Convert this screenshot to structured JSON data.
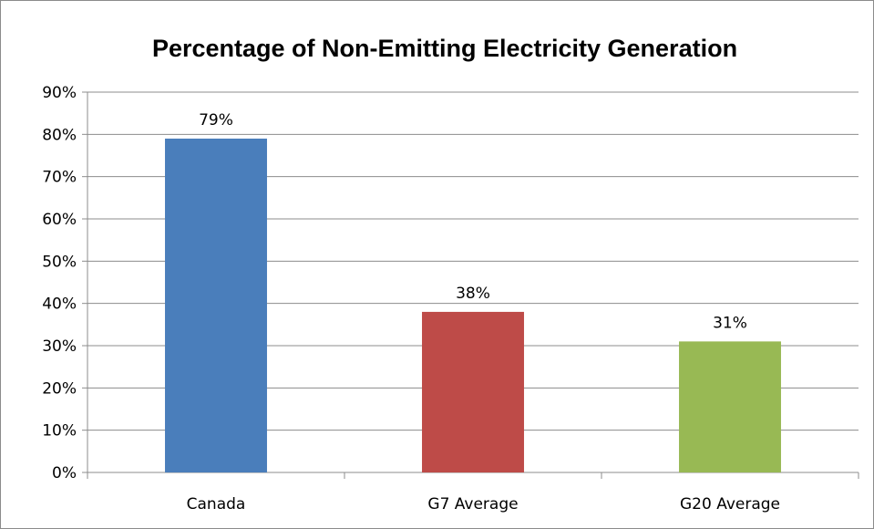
{
  "chart_data": {
    "type": "bar",
    "title": "Percentage of Non-Emitting Electricity Generation",
    "categories": [
      "Canada",
      "G7 Average",
      "G20 Average"
    ],
    "values": [
      79,
      38,
      31
    ],
    "data_labels": [
      "79%",
      "38%",
      "31%"
    ],
    "colors": [
      "#4a7ebb",
      "#be4b48",
      "#98b954"
    ],
    "ylim": [
      0,
      90
    ],
    "y_ticks": [
      0,
      10,
      20,
      30,
      40,
      50,
      60,
      70,
      80,
      90
    ],
    "y_tick_labels": [
      "0%",
      "10%",
      "20%",
      "30%",
      "40%",
      "50%",
      "60%",
      "70%",
      "80%",
      "90%"
    ],
    "grid": true,
    "legend": "none",
    "xlabel": "",
    "ylabel": ""
  }
}
